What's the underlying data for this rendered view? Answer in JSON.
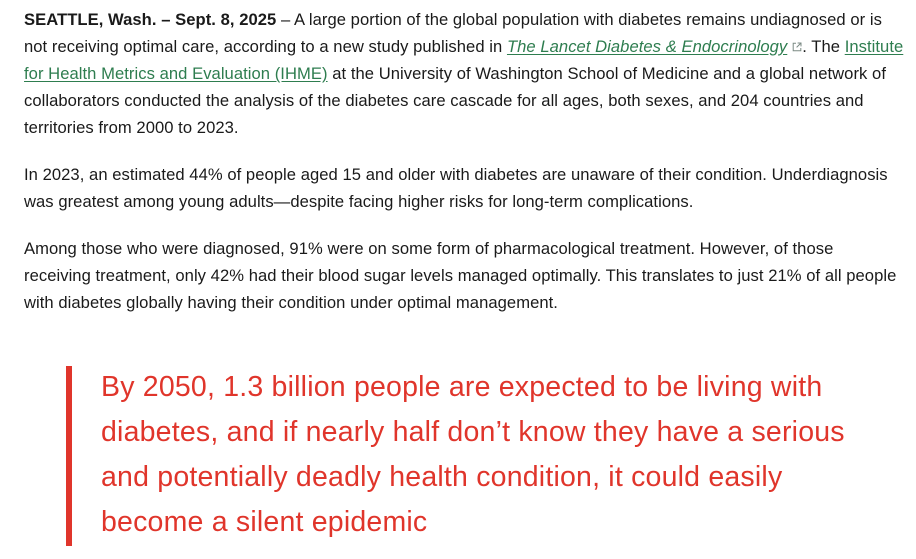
{
  "article": {
    "p1": {
      "dateline": "SEATTLE, Wash. – Sept. 8, 2025",
      "text_before_link": " – A large portion of the global population with diabetes remains undiagnosed or is not receiving optimal care, according to a new study published in ",
      "journal_link": "The Lancet Diabetes & Endocrinology",
      "text_between_links": ". The ",
      "institute_link": "Institute for Health Metrics and Evaluation (IHME)",
      "text_after_links": " at the University of Washington School of Medicine and a global network of collaborators conducted the analysis of the diabetes care cascade for all ages, both sexes, and 204 countries and territories from 2000 to 2023."
    },
    "p2": "In 2023, an estimated 44% of people aged 15 and older with diabetes are unaware of their condition. Underdiagnosis was greatest among young adults—despite facing higher risks for long-term complications.",
    "p3": "Among those who were diagnosed, 91% were on some form of pharmacological treatment. However, of those receiving treatment, only 42% had their blood sugar levels managed optimally. This translates to just 21% of all people with diabetes globally having their condition under optimal management."
  },
  "pull_quote": {
    "text": "By 2050, 1.3 billion people are expected to be living with diabetes, and if nearly half don’t know they have a serious and potentially deadly health condition, it could easily become a silent epidemic"
  },
  "colors": {
    "link": "#2e7d4f",
    "quote_accent": "#e0352b",
    "body_text": "#1a1a1a"
  },
  "icons": {
    "external_link": "external-link-icon"
  }
}
